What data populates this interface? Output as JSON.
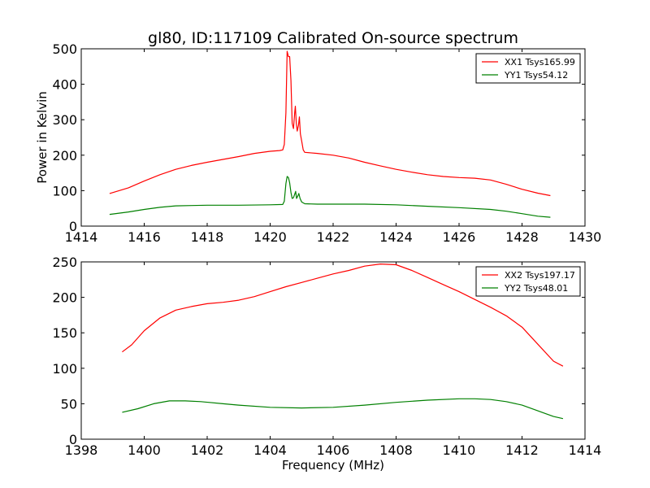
{
  "chart_data": {
    "title": "gl80, ID:117109 Calibrated On-source spectrum",
    "ylabel": "Power in Kelvin",
    "xlabel": "Frequency (MHz)",
    "panels": [
      {
        "type": "line",
        "xlim": [
          1414,
          1430
        ],
        "ylim": [
          0,
          500
        ],
        "xticks": [
          1414,
          1416,
          1418,
          1420,
          1422,
          1424,
          1426,
          1428,
          1430
        ],
        "yticks": [
          0,
          100,
          200,
          300,
          400,
          500
        ],
        "legend_position": "top-right",
        "series": [
          {
            "name": "XX1 Tsys165.99",
            "color": "#ff0000",
            "points": [
              [
                1414.9,
                92
              ],
              [
                1415.5,
                108
              ],
              [
                1416,
                127
              ],
              [
                1416.5,
                145
              ],
              [
                1417,
                160
              ],
              [
                1417.5,
                171
              ],
              [
                1418,
                180
              ],
              [
                1418.5,
                188
              ],
              [
                1419,
                196
              ],
              [
                1419.5,
                205
              ],
              [
                1420,
                211
              ],
              [
                1420.3,
                213
              ],
              [
                1420.4,
                215
              ],
              [
                1420.45,
                230
              ],
              [
                1420.5,
                320
              ],
              [
                1420.54,
                493
              ],
              [
                1420.58,
                478
              ],
              [
                1420.62,
                478
              ],
              [
                1420.66,
                410
              ],
              [
                1420.7,
                290
              ],
              [
                1420.74,
                275
              ],
              [
                1420.78,
                320
              ],
              [
                1420.8,
                338
              ],
              [
                1420.83,
                290
              ],
              [
                1420.86,
                268
              ],
              [
                1420.9,
                285
              ],
              [
                1420.93,
                308
              ],
              [
                1420.96,
                260
              ],
              [
                1421,
                240
              ],
              [
                1421.05,
                215
              ],
              [
                1421.1,
                208
              ],
              [
                1421.5,
                205
              ],
              [
                1422,
                200
              ],
              [
                1422.5,
                192
              ],
              [
                1423,
                180
              ],
              [
                1423.5,
                170
              ],
              [
                1424,
                160
              ],
              [
                1424.5,
                152
              ],
              [
                1425,
                145
              ],
              [
                1425.5,
                140
              ],
              [
                1426,
                137
              ],
              [
                1426.5,
                135
              ],
              [
                1427,
                130
              ],
              [
                1427.5,
                118
              ],
              [
                1428,
                104
              ],
              [
                1428.5,
                93
              ],
              [
                1428.9,
                86
              ]
            ]
          },
          {
            "name": "YY1 Tsys54.12",
            "color": "#008000",
            "points": [
              [
                1414.9,
                33
              ],
              [
                1415.5,
                40
              ],
              [
                1416,
                47
              ],
              [
                1416.5,
                53
              ],
              [
                1417,
                57
              ],
              [
                1417.5,
                58
              ],
              [
                1418,
                59
              ],
              [
                1419,
                59
              ],
              [
                1420,
                60
              ],
              [
                1420.4,
                61
              ],
              [
                1420.45,
                70
              ],
              [
                1420.5,
                120
              ],
              [
                1420.54,
                140
              ],
              [
                1420.58,
                137
              ],
              [
                1420.62,
                122
              ],
              [
                1420.66,
                95
              ],
              [
                1420.7,
                78
              ],
              [
                1420.74,
                80
              ],
              [
                1420.78,
                90
              ],
              [
                1420.81,
                98
              ],
              [
                1420.84,
                78
              ],
              [
                1420.88,
                85
              ],
              [
                1420.91,
                92
              ],
              [
                1420.95,
                78
              ],
              [
                1421,
                68
              ],
              [
                1421.1,
                63
              ],
              [
                1421.5,
                62
              ],
              [
                1422,
                62
              ],
              [
                1423,
                62
              ],
              [
                1424,
                60
              ],
              [
                1425,
                56
              ],
              [
                1426,
                52
              ],
              [
                1427,
                47
              ],
              [
                1427.5,
                42
              ],
              [
                1428,
                35
              ],
              [
                1428.5,
                28
              ],
              [
                1428.9,
                25
              ]
            ]
          }
        ]
      },
      {
        "type": "line",
        "xlim": [
          1398,
          1414
        ],
        "ylim": [
          0,
          250
        ],
        "xticks": [
          1398,
          1400,
          1402,
          1404,
          1406,
          1408,
          1410,
          1412,
          1414
        ],
        "yticks": [
          0,
          50,
          100,
          150,
          200,
          250
        ],
        "legend_position": "top-right",
        "series": [
          {
            "name": "XX2 Tsys197.17",
            "color": "#ff0000",
            "points": [
              [
                1399.3,
                123
              ],
              [
                1399.6,
                133
              ],
              [
                1400,
                153
              ],
              [
                1400.5,
                171
              ],
              [
                1401,
                182
              ],
              [
                1401.5,
                187
              ],
              [
                1402,
                191
              ],
              [
                1402.5,
                193
              ],
              [
                1403,
                196
              ],
              [
                1403.5,
                201
              ],
              [
                1404,
                208
              ],
              [
                1404.5,
                215
              ],
              [
                1405,
                221
              ],
              [
                1405.5,
                227
              ],
              [
                1406,
                233
              ],
              [
                1406.5,
                238
              ],
              [
                1407,
                244
              ],
              [
                1407.5,
                247
              ],
              [
                1408,
                246
              ],
              [
                1408.5,
                238
              ],
              [
                1409,
                228
              ],
              [
                1409.5,
                218
              ],
              [
                1410,
                208
              ],
              [
                1410.5,
                197
              ],
              [
                1411,
                186
              ],
              [
                1411.5,
                174
              ],
              [
                1412,
                158
              ],
              [
                1412.5,
                134
              ],
              [
                1413,
                110
              ],
              [
                1413.3,
                103
              ]
            ]
          },
          {
            "name": "YY2 Tsys48.01",
            "color": "#008000",
            "points": [
              [
                1399.3,
                38
              ],
              [
                1399.8,
                43
              ],
              [
                1400.3,
                50
              ],
              [
                1400.8,
                54
              ],
              [
                1401.3,
                54
              ],
              [
                1401.8,
                53
              ],
              [
                1402.5,
                50
              ],
              [
                1403,
                48
              ],
              [
                1404,
                45
              ],
              [
                1405,
                44
              ],
              [
                1406,
                45
              ],
              [
                1407,
                48
              ],
              [
                1408,
                52
              ],
              [
                1409,
                55
              ],
              [
                1410,
                57
              ],
              [
                1410.5,
                57
              ],
              [
                1411,
                56
              ],
              [
                1411.5,
                53
              ],
              [
                1412,
                48
              ],
              [
                1412.5,
                40
              ],
              [
                1413,
                32
              ],
              [
                1413.3,
                29
              ]
            ]
          }
        ]
      }
    ]
  }
}
